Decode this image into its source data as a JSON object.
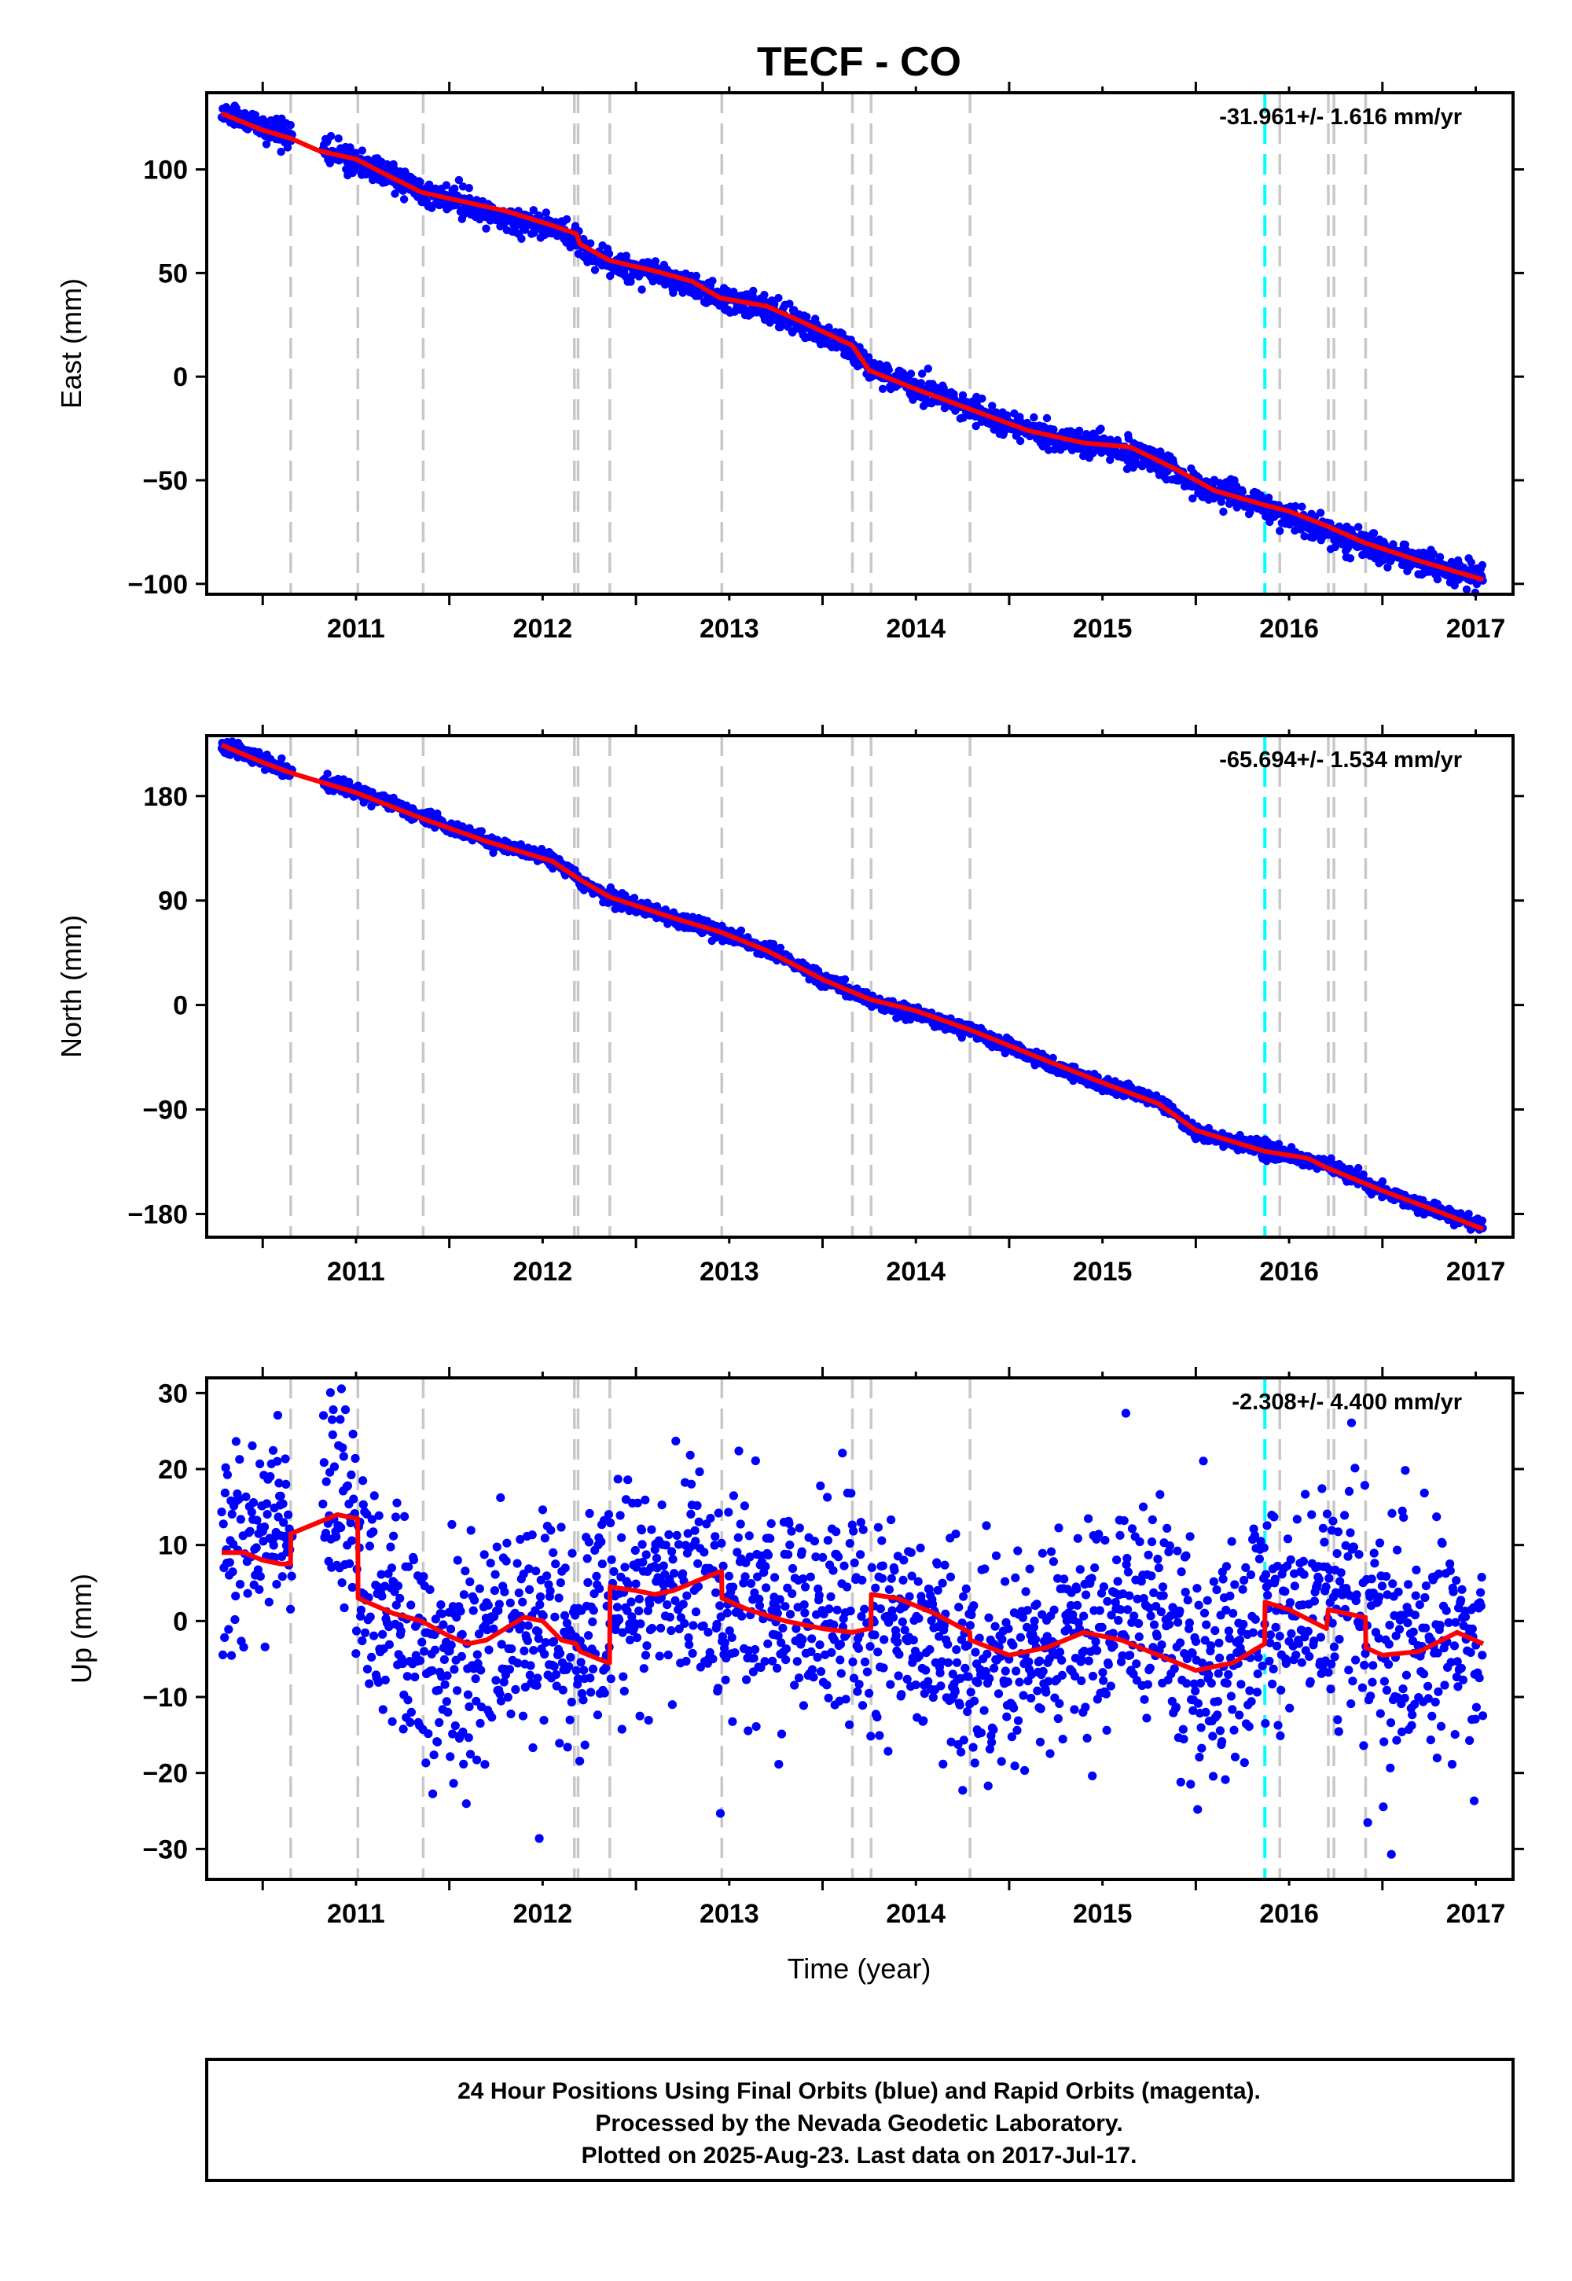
{
  "title": "TECF - CO",
  "xlabel": "Time (year)",
  "footer": {
    "line1": "24 Hour Positions Using Final Orbits (blue) and Rapid Orbits (magenta).",
    "line2": "Processed by the Nevada Geodetic Laboratory.",
    "line3": "Plotted on 2025-Aug-23. Last data on 2017-Jul-17."
  },
  "colors": {
    "data_points": "#0000ff",
    "model_line": "#ff0000",
    "equipment_change": "#c8c8c8",
    "earthquake_event": "#00ffff",
    "frame": "#000000"
  },
  "chart_data": [
    {
      "type": "scatter",
      "panel": "east",
      "ylabel": "East (mm)",
      "rate_label": "-31.961+/- 1.616 mm/yr",
      "xlim": [
        2010.7,
        2017.7
      ],
      "ylim": [
        -105,
        137
      ],
      "x_ticks": [
        "2011",
        "2012",
        "2013",
        "2014",
        "2015",
        "2016",
        "2017"
      ],
      "y_ticks": [
        {
          "value": 100,
          "label": "100"
        },
        {
          "value": 50,
          "label": "50"
        },
        {
          "value": 0,
          "label": "0"
        },
        {
          "value": -50,
          "label": "−50"
        },
        {
          "value": -100,
          "label": "−100"
        }
      ],
      "grid": false,
      "series": [
        {
          "kind": "points",
          "color": "blue",
          "noise_mm": 3,
          "x": [
            2010.78,
            2011.0,
            2011.15,
            2011.5,
            2011.85,
            2012.2,
            2012.55,
            2012.68,
            2012.7,
            2012.86,
            2013.2,
            2013.45,
            2013.7,
            2014.0,
            2014.16,
            2014.25,
            2014.5,
            2014.8,
            2015.2,
            2015.5,
            2015.8,
            2016.0,
            2016.37,
            2016.7,
            2017.0,
            2017.3,
            2017.54
          ],
          "y": [
            128,
            120,
            117,
            104,
            90,
            79,
            72,
            68,
            63,
            54,
            47,
            38,
            33,
            20,
            13,
            4,
            -5,
            -16,
            -29,
            -33,
            -40,
            -53,
            -62,
            -75,
            -84,
            -92,
            -97
          ]
        },
        {
          "kind": "model",
          "color": "red",
          "x": [
            2010.78,
            2011.0,
            2011.15,
            2011.3,
            2011.5,
            2011.65,
            2011.85,
            2012.0,
            2012.3,
            2012.55,
            2012.68,
            2012.7,
            2012.86,
            2013.1,
            2013.3,
            2013.45,
            2013.7,
            2013.9,
            2014.16,
            2014.25,
            2014.5,
            2014.8,
            2015.1,
            2015.4,
            2015.65,
            2015.9,
            2016.1,
            2016.37,
            2016.5,
            2016.7,
            2016.9,
            2017.2,
            2017.54
          ],
          "y": [
            127,
            119,
            115,
            109,
            105,
            98,
            89,
            86,
            80,
            73,
            69,
            64,
            56,
            51,
            46,
            38,
            34,
            26,
            15,
            3,
            -6,
            -16,
            -26,
            -32,
            -34,
            -45,
            -55,
            -62,
            -65,
            -72,
            -80,
            -89,
            -98
          ]
        }
      ]
    },
    {
      "type": "scatter",
      "panel": "north",
      "ylabel": "North (mm)",
      "rate_label": "-65.694+/- 1.534 mm/yr",
      "xlim": [
        2010.7,
        2017.7
      ],
      "ylim": [
        -200,
        232
      ],
      "x_ticks": [
        "2011",
        "2012",
        "2013",
        "2014",
        "2015",
        "2016",
        "2017"
      ],
      "y_ticks": [
        {
          "value": 180,
          "label": "180"
        },
        {
          "value": 90,
          "label": "90"
        },
        {
          "value": 0,
          "label": "0"
        },
        {
          "value": -90,
          "label": "−90"
        },
        {
          "value": -180,
          "label": "−180"
        }
      ],
      "grid": false,
      "series": [
        {
          "kind": "points",
          "color": "blue",
          "noise_mm": 3,
          "x": [
            2010.78,
            2011.0,
            2011.15,
            2011.5,
            2011.85,
            2012.2,
            2012.55,
            2012.68,
            2012.7,
            2012.86,
            2013.2,
            2013.45,
            2013.7,
            2014.0,
            2014.16,
            2014.25,
            2014.5,
            2014.8,
            2015.2,
            2015.5,
            2015.8,
            2016.0,
            2016.37,
            2016.7,
            2017.0,
            2017.3,
            2017.54
          ],
          "y": [
            225,
            210,
            200,
            185,
            163,
            141,
            126,
            112,
            108,
            92,
            75,
            62,
            48,
            22,
            12,
            3,
            -7,
            -22,
            -50,
            -68,
            -82,
            -110,
            -125,
            -138,
            -160,
            -178,
            -190
          ]
        },
        {
          "kind": "model",
          "color": "red",
          "x": [
            2010.78,
            2011.0,
            2011.15,
            2011.5,
            2011.85,
            2012.2,
            2012.55,
            2012.7,
            2012.86,
            2013.2,
            2013.45,
            2013.7,
            2014.0,
            2014.25,
            2014.5,
            2014.8,
            2015.2,
            2015.5,
            2015.8,
            2016.0,
            2016.37,
            2016.6,
            2016.7,
            2017.0,
            2017.3,
            2017.54
          ],
          "y": [
            224,
            209,
            200,
            183,
            161,
            141,
            124,
            108,
            93,
            75,
            63,
            47,
            22,
            5,
            -5,
            -22,
            -48,
            -67,
            -85,
            -108,
            -126,
            -132,
            -140,
            -160,
            -178,
            -193
          ]
        }
      ]
    },
    {
      "type": "scatter",
      "panel": "up",
      "ylabel": "Up (mm)",
      "xlabel": "Time (year)",
      "rate_label": "-2.308+/- 4.400 mm/yr",
      "xlim": [
        2010.7,
        2017.7
      ],
      "ylim": [
        -34,
        32
      ],
      "x_ticks": [
        "2011",
        "2012",
        "2013",
        "2014",
        "2015",
        "2016",
        "2017"
      ],
      "y_ticks": [
        {
          "value": 30,
          "label": "30"
        },
        {
          "value": 20,
          "label": "20"
        },
        {
          "value": 10,
          "label": "10"
        },
        {
          "value": 0,
          "label": "0"
        },
        {
          "value": -10,
          "label": "−10"
        },
        {
          "value": -20,
          "label": "−20"
        },
        {
          "value": -30,
          "label": "−30"
        }
      ],
      "grid": false,
      "series": [
        {
          "kind": "points",
          "color": "blue",
          "noise_mm": 7,
          "x": [
            2010.78,
            2010.95,
            2011.05,
            2011.35,
            2011.48,
            2011.6,
            2011.8,
            2012.0,
            2012.2,
            2012.4,
            2012.55,
            2012.7,
            2012.86,
            2013.0,
            2013.3,
            2013.6,
            2013.9,
            2014.1,
            2014.3,
            2014.6,
            2014.9,
            2015.2,
            2015.5,
            2015.8,
            2016.0,
            2016.2,
            2016.37,
            2016.6,
            2016.8,
            2017.0,
            2017.3,
            2017.54
          ],
          "y": [
            6,
            12,
            12,
            16,
            12,
            2,
            -2,
            -4,
            -3,
            1,
            -1,
            -3,
            2,
            4,
            5,
            2,
            0,
            0,
            2,
            -3,
            -6,
            -4,
            0,
            -1,
            -6,
            -5,
            2,
            1,
            3,
            -4,
            0,
            -5
          ]
        },
        {
          "kind": "model",
          "color": "red",
          "x": [
            2010.78,
            2010.9,
            2011.0,
            2011.1,
            2011.149,
            2011.151,
            2011.3,
            2011.4,
            2011.5,
            2011.509,
            2011.511,
            2011.7,
            2011.85,
            2012.0,
            2012.1,
            2012.2,
            2012.3,
            2012.4,
            2012.5,
            2012.6,
            2012.68,
            2012.7,
            2012.85,
            2012.859,
            2012.861,
            2013.0,
            2013.1,
            2013.2,
            2013.3,
            2013.45,
            2013.459,
            2013.461,
            2013.6,
            2013.8,
            2014.0,
            2014.16,
            2014.25,
            2014.259,
            2014.261,
            2014.4,
            2014.6,
            2014.789,
            2014.791,
            2015.0,
            2015.2,
            2015.4,
            2015.6,
            2015.8,
            2016.0,
            2016.2,
            2016.369,
            2016.371,
            2016.5,
            2016.7,
            2016.71,
            2016.9,
            2016.909,
            2016.911,
            2017.0,
            2017.2,
            2017.4,
            2017.54
          ],
          "y": [
            9,
            9,
            8,
            7.5,
            7.5,
            11.5,
            13,
            14,
            13.5,
            13.5,
            3,
            1,
            0,
            -2,
            -3,
            -2.5,
            -1,
            0.5,
            0,
            -2.5,
            -3,
            -4,
            -5.5,
            -5.5,
            4.5,
            4,
            3.5,
            4,
            5,
            6.5,
            6.5,
            3,
            1.5,
            0,
            -1,
            -1.5,
            -1,
            -1,
            3.5,
            3,
            1,
            -1.5,
            -2.5,
            -4.5,
            -3.5,
            -1.5,
            -2.5,
            -4.5,
            -6.5,
            -5.5,
            -3,
            2.5,
            1.5,
            -1,
            1.5,
            0.5,
            0.5,
            -3.5,
            -4.5,
            -4,
            -1.5,
            -3
          ]
        }
      ]
    }
  ],
  "equipment_change_epochs": [
    2011.15,
    2011.51,
    2011.86,
    2012.67,
    2012.69,
    2012.86,
    2013.46,
    2014.16,
    2014.26,
    2014.79,
    2016.45,
    2016.71,
    2016.74,
    2016.91
  ],
  "earthquake_epochs": [
    2016.37
  ]
}
